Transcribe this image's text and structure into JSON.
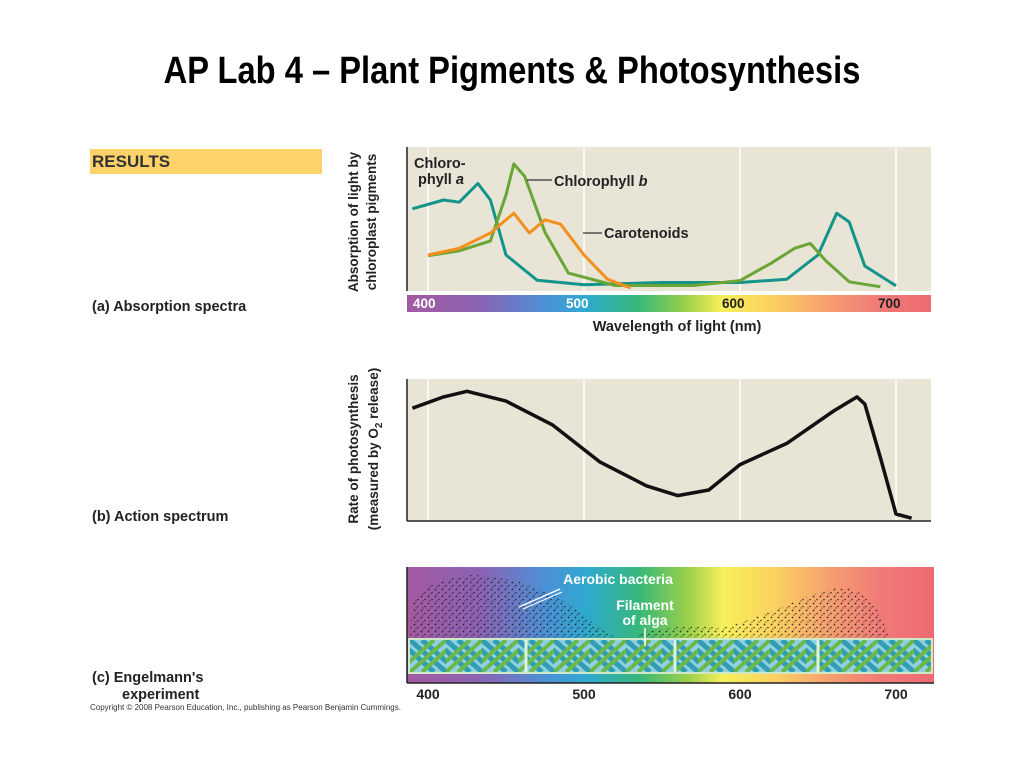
{
  "slide": {
    "title": "AP Lab 4 – Plant Pigments & Photosynthesis",
    "results_label": "RESULTS",
    "copyright": "Copyright © 2008 Pearson Education, Inc., publishing as Pearson Benjamin Cummings."
  },
  "panel_a": {
    "label": "(a) Absorption spectra",
    "ylabel_line1": "Absorption of light by",
    "ylabel_line2": "chloroplast pigments",
    "xlabel": "Wavelength of light (nm)",
    "ticks": [
      "400",
      "500",
      "600",
      "700"
    ],
    "chl_a_label_line1": "Chloro-",
    "chl_a_label_line2": "phyll",
    "chl_a_label_letter": "a",
    "chl_b_label": "Chlorophyll",
    "chl_b_label_letter": "b",
    "carotenoids_label": "Carotenoids",
    "colors": {
      "chlorophyll_a": "#13948a",
      "chlorophyll_b": "#6aa637",
      "carotenoids": "#f3901f",
      "panel_bg": "#e8e5d6"
    }
  },
  "panel_b": {
    "label": "(b) Action spectrum",
    "ylabel_line1": "Rate of photosynthesis",
    "ylabel_line2": "(measured by O",
    "ylabel_sub": "2",
    "ylabel_line2_end": " release)"
  },
  "panel_c": {
    "label_line1": "(c) Engelmann's",
    "label_line2": "experiment",
    "bacteria_label": "Aerobic bacteria",
    "filament_line1": "Filament",
    "filament_line2": "of alga",
    "ticks": [
      "400",
      "500",
      "600",
      "700"
    ]
  },
  "chart_data": [
    {
      "type": "line",
      "title": "",
      "xlabel": "Wavelength of light (nm)",
      "ylabel": "Absorption of light by chloroplast pigments",
      "xlim": [
        390,
        720
      ],
      "series": [
        {
          "name": "Chlorophyll a",
          "x": [
            390,
            410,
            420,
            432,
            440,
            450,
            470,
            500,
            550,
            600,
            630,
            650,
            662,
            670,
            680,
            700
          ],
          "y": [
            0.72,
            0.8,
            0.78,
            0.95,
            0.8,
            0.3,
            0.07,
            0.03,
            0.05,
            0.05,
            0.08,
            0.3,
            0.68,
            0.6,
            0.2,
            0.02
          ]
        },
        {
          "name": "Chlorophyll b",
          "x": [
            400,
            420,
            440,
            450,
            455,
            462,
            475,
            490,
            520,
            570,
            600,
            620,
            635,
            645,
            655,
            670,
            690
          ],
          "y": [
            0.26,
            0.3,
            0.38,
            0.75,
            1.0,
            0.9,
            0.45,
            0.12,
            0.02,
            0.02,
            0.06,
            0.2,
            0.32,
            0.36,
            0.22,
            0.05,
            0.01
          ]
        },
        {
          "name": "Carotenoids",
          "x": [
            400,
            420,
            440,
            455,
            465,
            475,
            485,
            500,
            515,
            530
          ],
          "y": [
            0.3,
            0.36,
            0.5,
            0.68,
            0.5,
            0.62,
            0.58,
            0.3,
            0.08,
            0.0
          ]
        }
      ]
    },
    {
      "type": "line",
      "title": "",
      "xlabel": "",
      "ylabel": "Rate of photosynthesis (measured by O2 release)",
      "xlim": [
        390,
        720
      ],
      "series": [
        {
          "name": "",
          "x": [
            390,
            410,
            425,
            450,
            480,
            510,
            540,
            560,
            580,
            600,
            630,
            660,
            675,
            680,
            690,
            700,
            710
          ],
          "y": [
            0.8,
            0.88,
            0.92,
            0.85,
            0.68,
            0.42,
            0.25,
            0.18,
            0.22,
            0.4,
            0.55,
            0.78,
            0.88,
            0.83,
            0.45,
            0.05,
            0.02
          ]
        }
      ]
    }
  ]
}
